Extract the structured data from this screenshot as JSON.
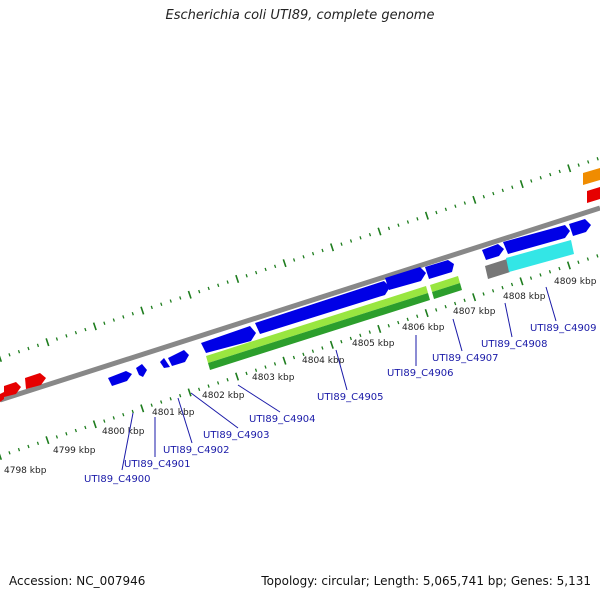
{
  "title": "Escherichia coli UTI89, complete genome",
  "footer": {
    "accession": "Accession: NC_007946",
    "summary": "Topology: circular; Length: 5,065,741 bp; Genes: 5,131"
  },
  "colors": {
    "backbone": "#888888",
    "tick": "#1e7d1e",
    "forward_gene": "#0000e6",
    "other_gene": "#e60000",
    "orange_gene": "#f08c00",
    "cds_light": "#99e640",
    "cds_dark": "#2c9e2c",
    "cyan_feature": "#33e6e6",
    "gray_feature": "#777777",
    "label": "#1a1aa8"
  },
  "ruler": [
    {
      "label": "4798 kbp"
    },
    {
      "label": "4799 kbp"
    },
    {
      "label": "4800 kbp"
    },
    {
      "label": "4801 kbp"
    },
    {
      "label": "4802 kbp"
    },
    {
      "label": "4803 kbp"
    },
    {
      "label": "4804 kbp"
    },
    {
      "label": "4805 kbp"
    },
    {
      "label": "4806 kbp"
    },
    {
      "label": "4807 kbp"
    },
    {
      "label": "4808 kbp"
    },
    {
      "label": "4809 kbp"
    }
  ],
  "genes": [
    {
      "label": "UTI89_C4900"
    },
    {
      "label": "UTI89_C4901"
    },
    {
      "label": "UTI89_C4902"
    },
    {
      "label": "UTI89_C4903"
    },
    {
      "label": "UTI89_C4904"
    },
    {
      "label": "UTI89_C4905"
    },
    {
      "label": "UTI89_C4906"
    },
    {
      "label": "UTI89_C4907"
    },
    {
      "label": "UTI89_C4908"
    },
    {
      "label": "UTI89_C4909"
    }
  ]
}
